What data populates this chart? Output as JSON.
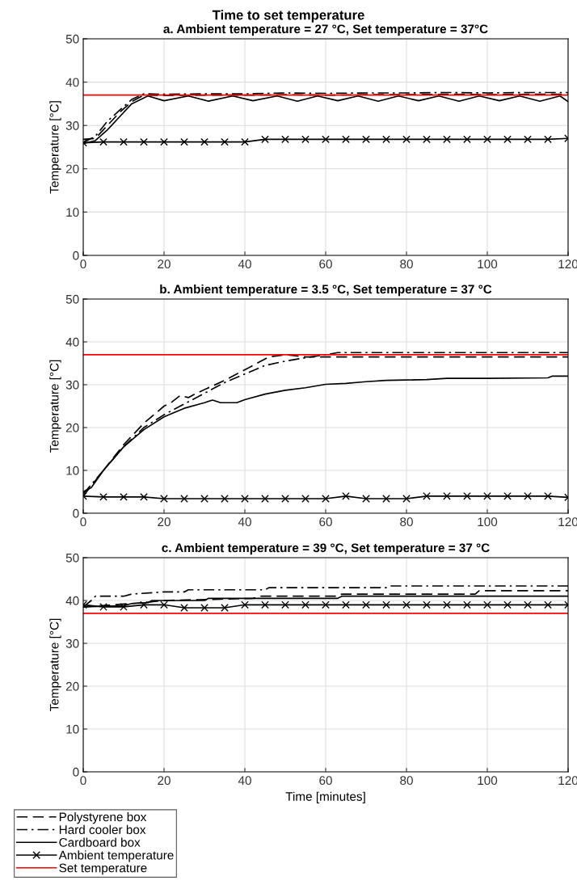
{
  "chart_data": [
    {
      "type": "line",
      "title": "a. Ambient temperature = 27 °C, Set temperature = 37°C",
      "ylabel": "Temperature [°C]",
      "annotations": [
        "Time to set temperature"
      ],
      "xlim": [
        0,
        120
      ],
      "ylim": [
        0,
        50
      ],
      "xticks": [
        0,
        20,
        40,
        60,
        80,
        100,
        120
      ],
      "yticks": [
        0,
        10,
        20,
        30,
        40,
        50
      ],
      "grid": true,
      "legend": false,
      "series": [
        {
          "color": "#000000",
          "line_style": "dashed",
          "x": [
            0,
            3,
            6,
            9,
            12,
            15,
            20,
            30,
            40,
            50,
            60,
            70,
            80,
            90,
            100,
            110,
            120
          ],
          "values": [
            26.8,
            27,
            30,
            33,
            35.5,
            37,
            36.9,
            37,
            37,
            37.1,
            37,
            37.1,
            37.1,
            37.2,
            37.1,
            37.2,
            37.2
          ]
        },
        {
          "color": "#000000",
          "line_style": "dashdot",
          "x": [
            0,
            3,
            6,
            9,
            12,
            15,
            20,
            30,
            40,
            50,
            60,
            70,
            80,
            90,
            100,
            110,
            120
          ],
          "values": [
            26,
            27.5,
            31,
            33.5,
            36,
            37.3,
            37.2,
            37.3,
            37.3,
            37.5,
            37.4,
            37.5,
            37.5,
            37.6,
            37.5,
            37.6,
            37.6
          ]
        },
        {
          "color": "#000000",
          "line_style": "solid",
          "x": [
            0,
            3,
            6,
            9,
            12,
            16,
            20,
            26,
            31,
            37,
            42,
            48,
            53,
            58,
            63,
            68,
            73,
            78,
            83,
            88,
            93,
            98,
            103,
            108,
            113,
            118,
            120
          ],
          "values": [
            25.8,
            26.5,
            29,
            32,
            35,
            36.8,
            35.7,
            36.8,
            35.6,
            36.8,
            35.7,
            36.8,
            35.6,
            36.8,
            35.7,
            36.8,
            35.6,
            36.8,
            35.7,
            36.8,
            35.6,
            36.8,
            35.7,
            36.8,
            35.6,
            36.8,
            35.5
          ]
        },
        {
          "color": "#000000",
          "line_style": "solid",
          "marker": "cross",
          "x": [
            0,
            5,
            10,
            15,
            20,
            25,
            30,
            35,
            40,
            45,
            50,
            55,
            60,
            65,
            70,
            75,
            80,
            85,
            90,
            95,
            100,
            105,
            110,
            115,
            120
          ],
          "values": [
            26,
            26.2,
            26.2,
            26.2,
            26.2,
            26.2,
            26.2,
            26.2,
            26.2,
            26.8,
            26.8,
            26.8,
            26.8,
            26.8,
            26.8,
            26.8,
            26.8,
            26.8,
            26.8,
            26.8,
            26.8,
            26.8,
            26.8,
            26.8,
            27
          ]
        }
      ],
      "ref_lines": [
        {
          "axis": "y",
          "value": 37,
          "color": "#ff0000"
        }
      ]
    },
    {
      "type": "line",
      "title": "b. Ambient temperature = 3.5 °C, Set temperature = 37 °C",
      "ylabel": "Temperature [°C]",
      "xlim": [
        0,
        120
      ],
      "ylim": [
        0,
        50
      ],
      "xticks": [
        0,
        20,
        40,
        60,
        80,
        100,
        120
      ],
      "yticks": [
        0,
        10,
        20,
        30,
        40,
        50
      ],
      "grid": true,
      "legend": false,
      "series": [
        {
          "color": "#000000",
          "line_style": "dashed",
          "x": [
            0,
            5,
            10,
            15,
            20,
            22,
            24,
            26,
            28,
            35,
            40,
            44,
            46,
            50,
            55,
            120
          ],
          "values": [
            4,
            10,
            16,
            21,
            25,
            26,
            27.5,
            27,
            28,
            31,
            33.5,
            35.5,
            36.5,
            37,
            36.5,
            36.5
          ]
        },
        {
          "color": "#000000",
          "line_style": "dashdot",
          "x": [
            0,
            5,
            10,
            15,
            20,
            25,
            30,
            35,
            40,
            45,
            50,
            55,
            60,
            63,
            120
          ],
          "values": [
            4.5,
            10,
            15.5,
            20,
            23,
            25.5,
            28,
            30.5,
            32.5,
            34.5,
            35.5,
            36.3,
            37,
            37.5,
            37.5
          ]
        },
        {
          "color": "#000000",
          "line_style": "solid",
          "x": [
            0,
            2,
            5,
            10,
            15,
            20,
            25,
            30,
            32,
            34,
            38,
            40,
            45,
            50,
            55,
            60,
            65,
            70,
            75,
            80,
            85,
            90,
            100,
            115,
            116,
            120
          ],
          "values": [
            5,
            6,
            10,
            15.5,
            19.5,
            22.5,
            24.5,
            25.8,
            26.4,
            25.8,
            25.8,
            26.5,
            27.8,
            28.7,
            29.3,
            30.1,
            30.3,
            30.7,
            31,
            31.1,
            31.2,
            31.5,
            31.5,
            31.6,
            32,
            32
          ]
        },
        {
          "color": "#000000",
          "line_style": "solid",
          "marker": "cross",
          "x": [
            0,
            5,
            10,
            15,
            20,
            25,
            30,
            35,
            40,
            45,
            50,
            55,
            60,
            65,
            70,
            75,
            80,
            85,
            90,
            95,
            100,
            105,
            110,
            115,
            120
          ],
          "values": [
            4,
            3.8,
            3.8,
            3.8,
            3.4,
            3.4,
            3.4,
            3.4,
            3.4,
            3.4,
            3.4,
            3.4,
            3.4,
            4,
            3.4,
            3.4,
            3.4,
            4,
            4,
            4,
            4,
            4,
            4,
            4,
            3.7
          ]
        }
      ],
      "ref_lines": [
        {
          "axis": "y",
          "value": 37,
          "color": "#ff0000"
        }
      ]
    },
    {
      "type": "line",
      "title": "c. Ambient temperature = 39 °C, Set temperature = 37 °C",
      "xlabel": "Time [minutes]",
      "ylabel": "Temperature [°C]",
      "xlim": [
        0,
        120
      ],
      "ylim": [
        0,
        50
      ],
      "xticks": [
        0,
        20,
        40,
        60,
        80,
        100,
        120
      ],
      "yticks": [
        0,
        10,
        20,
        30,
        40,
        50
      ],
      "grid": true,
      "legend": "bottom left",
      "series": [
        {
          "name": "Polystyrene box",
          "color": "#000000",
          "line_style": "dashed",
          "x": [
            0,
            15,
            20,
            42,
            44,
            63,
            64,
            97,
            98,
            120
          ],
          "values": [
            38.5,
            39.5,
            40,
            40.5,
            41,
            41,
            41.5,
            41.5,
            42.3,
            42.3
          ]
        },
        {
          "name": "Hard cooler box",
          "color": "#000000",
          "line_style": "dashdot",
          "x": [
            0,
            2,
            3,
            10,
            12,
            20,
            25,
            26,
            45,
            46,
            75,
            76,
            120
          ],
          "values": [
            38.5,
            40,
            41,
            41,
            41.5,
            42,
            42,
            42.5,
            42.5,
            43,
            43,
            43.4,
            43.4
          ]
        },
        {
          "name": "Cardboard box",
          "color": "#000000",
          "line_style": "solid",
          "x": [
            0,
            10,
            12,
            16,
            17,
            30,
            31,
            63,
            64,
            120
          ],
          "values": [
            38.5,
            38.8,
            39.3,
            39.5,
            40,
            40,
            40.5,
            40.5,
            41,
            41
          ]
        },
        {
          "name": "Ambient temperature",
          "color": "#000000",
          "line_style": "solid",
          "marker": "cross",
          "x": [
            0,
            5,
            10,
            15,
            20,
            25,
            30,
            35,
            40,
            45,
            50,
            55,
            60,
            65,
            70,
            75,
            80,
            85,
            90,
            95,
            100,
            105,
            110,
            115,
            120
          ],
          "values": [
            39,
            38.5,
            38.5,
            39,
            39,
            38.3,
            38.3,
            38.3,
            39,
            39,
            39,
            39,
            39,
            39,
            39,
            39,
            39,
            39,
            39,
            39,
            39,
            39,
            39,
            39,
            39
          ]
        }
      ],
      "ref_lines": [
        {
          "axis": "y",
          "value": 37,
          "color": "#ff0000",
          "label": "Set temperature"
        }
      ]
    }
  ]
}
